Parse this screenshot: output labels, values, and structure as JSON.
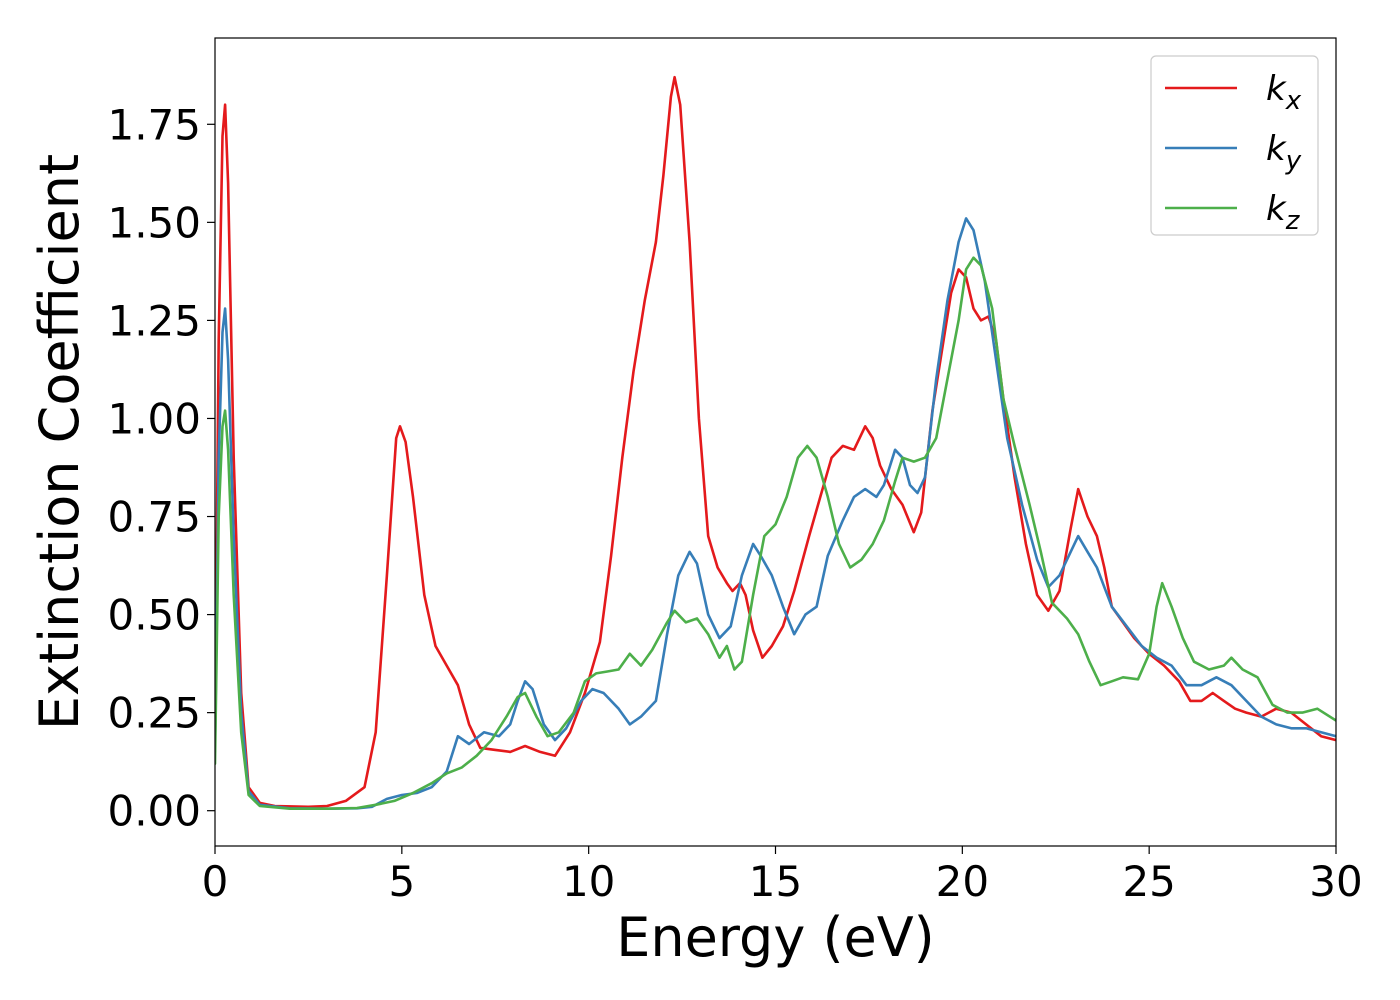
{
  "chart_data": {
    "type": "line",
    "title": "",
    "xlabel": "Energy (eV)",
    "ylabel": "Extinction Coefficient",
    "xlim": [
      0,
      30
    ],
    "ylim": [
      -0.09,
      1.97
    ],
    "xticks": [
      0,
      5,
      10,
      15,
      20,
      25,
      30
    ],
    "xtick_labels": [
      "0",
      "5",
      "10",
      "15",
      "20",
      "25",
      "30"
    ],
    "yticks": [
      0,
      0.25,
      0.5,
      0.75,
      1.0,
      1.25,
      1.5,
      1.75
    ],
    "ytick_labels": [
      "0.00",
      "0.25",
      "0.50",
      "0.75",
      "1.00",
      "1.25",
      "1.50",
      "1.75"
    ],
    "grid": false,
    "legend_position": "top-right",
    "series": [
      {
        "name": "k",
        "subscript": "x",
        "color": "#e41a1c",
        "points": [
          [
            0,
            0.2
          ],
          [
            0.1,
            1.2
          ],
          [
            0.2,
            1.72
          ],
          [
            0.27,
            1.8
          ],
          [
            0.35,
            1.6
          ],
          [
            0.5,
            0.9
          ],
          [
            0.7,
            0.3
          ],
          [
            0.9,
            0.06
          ],
          [
            1.2,
            0.02
          ],
          [
            1.6,
            0.012
          ],
          [
            2.5,
            0.01
          ],
          [
            3.0,
            0.012
          ],
          [
            3.5,
            0.025
          ],
          [
            4.0,
            0.06
          ],
          [
            4.3,
            0.2
          ],
          [
            4.6,
            0.6
          ],
          [
            4.85,
            0.95
          ],
          [
            4.95,
            0.98
          ],
          [
            5.1,
            0.94
          ],
          [
            5.3,
            0.8
          ],
          [
            5.6,
            0.55
          ],
          [
            5.9,
            0.42
          ],
          [
            6.2,
            0.37
          ],
          [
            6.5,
            0.32
          ],
          [
            6.8,
            0.22
          ],
          [
            7.1,
            0.16
          ],
          [
            7.5,
            0.155
          ],
          [
            7.9,
            0.15
          ],
          [
            8.3,
            0.165
          ],
          [
            8.7,
            0.15
          ],
          [
            9.1,
            0.14
          ],
          [
            9.5,
            0.2
          ],
          [
            9.9,
            0.3
          ],
          [
            10.3,
            0.43
          ],
          [
            10.6,
            0.65
          ],
          [
            10.9,
            0.9
          ],
          [
            11.2,
            1.12
          ],
          [
            11.5,
            1.3
          ],
          [
            11.8,
            1.45
          ],
          [
            12.0,
            1.62
          ],
          [
            12.2,
            1.82
          ],
          [
            12.3,
            1.87
          ],
          [
            12.45,
            1.8
          ],
          [
            12.7,
            1.45
          ],
          [
            12.95,
            1.0
          ],
          [
            13.2,
            0.7
          ],
          [
            13.45,
            0.62
          ],
          [
            13.7,
            0.58
          ],
          [
            13.85,
            0.56
          ],
          [
            14.05,
            0.58
          ],
          [
            14.2,
            0.55
          ],
          [
            14.4,
            0.46
          ],
          [
            14.65,
            0.39
          ],
          [
            14.9,
            0.42
          ],
          [
            15.2,
            0.47
          ],
          [
            15.5,
            0.56
          ],
          [
            15.9,
            0.7
          ],
          [
            16.2,
            0.8
          ],
          [
            16.5,
            0.9
          ],
          [
            16.8,
            0.93
          ],
          [
            17.1,
            0.92
          ],
          [
            17.4,
            0.98
          ],
          [
            17.6,
            0.95
          ],
          [
            17.8,
            0.88
          ],
          [
            18.1,
            0.82
          ],
          [
            18.4,
            0.78
          ],
          [
            18.7,
            0.71
          ],
          [
            18.9,
            0.76
          ],
          [
            19.2,
            1.02
          ],
          [
            19.5,
            1.2
          ],
          [
            19.7,
            1.32
          ],
          [
            19.9,
            1.38
          ],
          [
            20.1,
            1.36
          ],
          [
            20.3,
            1.28
          ],
          [
            20.5,
            1.25
          ],
          [
            20.7,
            1.26
          ],
          [
            20.9,
            1.2
          ],
          [
            21.1,
            1.05
          ],
          [
            21.4,
            0.85
          ],
          [
            21.7,
            0.68
          ],
          [
            22.0,
            0.55
          ],
          [
            22.3,
            0.51
          ],
          [
            22.6,
            0.56
          ],
          [
            22.9,
            0.72
          ],
          [
            23.1,
            0.82
          ],
          [
            23.35,
            0.75
          ],
          [
            23.6,
            0.7
          ],
          [
            23.8,
            0.62
          ],
          [
            24.0,
            0.52
          ],
          [
            24.3,
            0.48
          ],
          [
            24.6,
            0.44
          ],
          [
            25.0,
            0.4
          ],
          [
            25.4,
            0.37
          ],
          [
            25.8,
            0.33
          ],
          [
            26.1,
            0.28
          ],
          [
            26.4,
            0.28
          ],
          [
            26.7,
            0.3
          ],
          [
            27.0,
            0.28
          ],
          [
            27.3,
            0.26
          ],
          [
            27.6,
            0.25
          ],
          [
            28.0,
            0.24
          ],
          [
            28.4,
            0.26
          ],
          [
            28.8,
            0.25
          ],
          [
            29.2,
            0.22
          ],
          [
            29.6,
            0.19
          ],
          [
            30,
            0.18
          ]
        ]
      },
      {
        "name": "k",
        "subscript": "y",
        "color": "#377eb8",
        "points": [
          [
            0,
            0.15
          ],
          [
            0.1,
            0.9
          ],
          [
            0.2,
            1.22
          ],
          [
            0.27,
            1.28
          ],
          [
            0.35,
            1.15
          ],
          [
            0.5,
            0.7
          ],
          [
            0.7,
            0.25
          ],
          [
            0.9,
            0.05
          ],
          [
            1.2,
            0.015
          ],
          [
            2.0,
            0.006
          ],
          [
            3.0,
            0.005
          ],
          [
            3.8,
            0.006
          ],
          [
            4.2,
            0.01
          ],
          [
            4.6,
            0.03
          ],
          [
            5.0,
            0.04
          ],
          [
            5.4,
            0.045
          ],
          [
            5.8,
            0.06
          ],
          [
            6.2,
            0.1
          ],
          [
            6.5,
            0.19
          ],
          [
            6.8,
            0.17
          ],
          [
            7.2,
            0.2
          ],
          [
            7.6,
            0.19
          ],
          [
            7.9,
            0.22
          ],
          [
            8.1,
            0.28
          ],
          [
            8.3,
            0.33
          ],
          [
            8.5,
            0.31
          ],
          [
            8.8,
            0.22
          ],
          [
            9.1,
            0.18
          ],
          [
            9.4,
            0.21
          ],
          [
            9.8,
            0.28
          ],
          [
            10.1,
            0.31
          ],
          [
            10.4,
            0.3
          ],
          [
            10.8,
            0.26
          ],
          [
            11.1,
            0.22
          ],
          [
            11.4,
            0.24
          ],
          [
            11.8,
            0.28
          ],
          [
            12.1,
            0.45
          ],
          [
            12.4,
            0.6
          ],
          [
            12.7,
            0.66
          ],
          [
            12.9,
            0.63
          ],
          [
            13.2,
            0.5
          ],
          [
            13.5,
            0.44
          ],
          [
            13.8,
            0.47
          ],
          [
            14.1,
            0.6
          ],
          [
            14.4,
            0.68
          ],
          [
            14.6,
            0.65
          ],
          [
            14.9,
            0.6
          ],
          [
            15.2,
            0.52
          ],
          [
            15.5,
            0.45
          ],
          [
            15.8,
            0.5
          ],
          [
            16.1,
            0.52
          ],
          [
            16.4,
            0.65
          ],
          [
            16.8,
            0.74
          ],
          [
            17.1,
            0.8
          ],
          [
            17.4,
            0.82
          ],
          [
            17.7,
            0.8
          ],
          [
            17.9,
            0.83
          ],
          [
            18.2,
            0.92
          ],
          [
            18.4,
            0.9
          ],
          [
            18.6,
            0.83
          ],
          [
            18.8,
            0.81
          ],
          [
            19.0,
            0.85
          ],
          [
            19.3,
            1.1
          ],
          [
            19.6,
            1.3
          ],
          [
            19.9,
            1.45
          ],
          [
            20.1,
            1.51
          ],
          [
            20.3,
            1.48
          ],
          [
            20.6,
            1.35
          ],
          [
            20.9,
            1.15
          ],
          [
            21.2,
            0.95
          ],
          [
            21.6,
            0.78
          ],
          [
            22.0,
            0.64
          ],
          [
            22.3,
            0.57
          ],
          [
            22.6,
            0.6
          ],
          [
            22.9,
            0.66
          ],
          [
            23.1,
            0.7
          ],
          [
            23.35,
            0.66
          ],
          [
            23.6,
            0.62
          ],
          [
            23.8,
            0.57
          ],
          [
            24.0,
            0.52
          ],
          [
            24.4,
            0.47
          ],
          [
            24.8,
            0.42
          ],
          [
            25.2,
            0.39
          ],
          [
            25.6,
            0.37
          ],
          [
            26.0,
            0.32
          ],
          [
            26.4,
            0.32
          ],
          [
            26.8,
            0.34
          ],
          [
            27.2,
            0.32
          ],
          [
            27.6,
            0.28
          ],
          [
            28.0,
            0.24
          ],
          [
            28.4,
            0.22
          ],
          [
            28.8,
            0.21
          ],
          [
            29.2,
            0.21
          ],
          [
            29.6,
            0.2
          ],
          [
            30,
            0.19
          ]
        ]
      },
      {
        "name": "k",
        "subscript": "z",
        "color": "#4daf4a",
        "points": [
          [
            0,
            0.12
          ],
          [
            0.1,
            0.75
          ],
          [
            0.2,
            0.98
          ],
          [
            0.27,
            1.02
          ],
          [
            0.35,
            0.92
          ],
          [
            0.5,
            0.55
          ],
          [
            0.7,
            0.2
          ],
          [
            0.9,
            0.04
          ],
          [
            1.2,
            0.012
          ],
          [
            2.0,
            0.005
          ],
          [
            3.0,
            0.005
          ],
          [
            3.8,
            0.007
          ],
          [
            4.3,
            0.015
          ],
          [
            4.8,
            0.025
          ],
          [
            5.3,
            0.045
          ],
          [
            5.8,
            0.07
          ],
          [
            6.2,
            0.095
          ],
          [
            6.6,
            0.11
          ],
          [
            7.0,
            0.14
          ],
          [
            7.4,
            0.18
          ],
          [
            7.8,
            0.24
          ],
          [
            8.1,
            0.29
          ],
          [
            8.3,
            0.3
          ],
          [
            8.6,
            0.24
          ],
          [
            8.9,
            0.19
          ],
          [
            9.2,
            0.2
          ],
          [
            9.6,
            0.25
          ],
          [
            9.9,
            0.33
          ],
          [
            10.2,
            0.35
          ],
          [
            10.5,
            0.355
          ],
          [
            10.8,
            0.36
          ],
          [
            11.1,
            0.4
          ],
          [
            11.4,
            0.37
          ],
          [
            11.7,
            0.41
          ],
          [
            12.1,
            0.48
          ],
          [
            12.3,
            0.51
          ],
          [
            12.6,
            0.48
          ],
          [
            12.9,
            0.49
          ],
          [
            13.2,
            0.45
          ],
          [
            13.5,
            0.39
          ],
          [
            13.7,
            0.42
          ],
          [
            13.9,
            0.36
          ],
          [
            14.1,
            0.38
          ],
          [
            14.4,
            0.55
          ],
          [
            14.7,
            0.7
          ],
          [
            15.0,
            0.73
          ],
          [
            15.3,
            0.8
          ],
          [
            15.6,
            0.9
          ],
          [
            15.85,
            0.93
          ],
          [
            16.1,
            0.9
          ],
          [
            16.4,
            0.8
          ],
          [
            16.7,
            0.68
          ],
          [
            17.0,
            0.62
          ],
          [
            17.3,
            0.64
          ],
          [
            17.6,
            0.68
          ],
          [
            17.9,
            0.74
          ],
          [
            18.2,
            0.84
          ],
          [
            18.4,
            0.9
          ],
          [
            18.7,
            0.89
          ],
          [
            19.0,
            0.9
          ],
          [
            19.3,
            0.95
          ],
          [
            19.6,
            1.1
          ],
          [
            19.9,
            1.25
          ],
          [
            20.1,
            1.38
          ],
          [
            20.3,
            1.41
          ],
          [
            20.5,
            1.39
          ],
          [
            20.8,
            1.28
          ],
          [
            21.1,
            1.05
          ],
          [
            21.4,
            0.93
          ],
          [
            21.8,
            0.78
          ],
          [
            22.1,
            0.66
          ],
          [
            22.4,
            0.53
          ],
          [
            22.8,
            0.49
          ],
          [
            23.1,
            0.45
          ],
          [
            23.4,
            0.38
          ],
          [
            23.7,
            0.32
          ],
          [
            24.0,
            0.33
          ],
          [
            24.3,
            0.34
          ],
          [
            24.7,
            0.335
          ],
          [
            25.0,
            0.4
          ],
          [
            25.2,
            0.52
          ],
          [
            25.35,
            0.58
          ],
          [
            25.6,
            0.52
          ],
          [
            25.9,
            0.44
          ],
          [
            26.2,
            0.38
          ],
          [
            26.6,
            0.36
          ],
          [
            27.0,
            0.37
          ],
          [
            27.2,
            0.39
          ],
          [
            27.5,
            0.36
          ],
          [
            27.9,
            0.34
          ],
          [
            28.3,
            0.27
          ],
          [
            28.7,
            0.25
          ],
          [
            29.1,
            0.25
          ],
          [
            29.5,
            0.26
          ],
          [
            30,
            0.23
          ]
        ]
      }
    ]
  }
}
